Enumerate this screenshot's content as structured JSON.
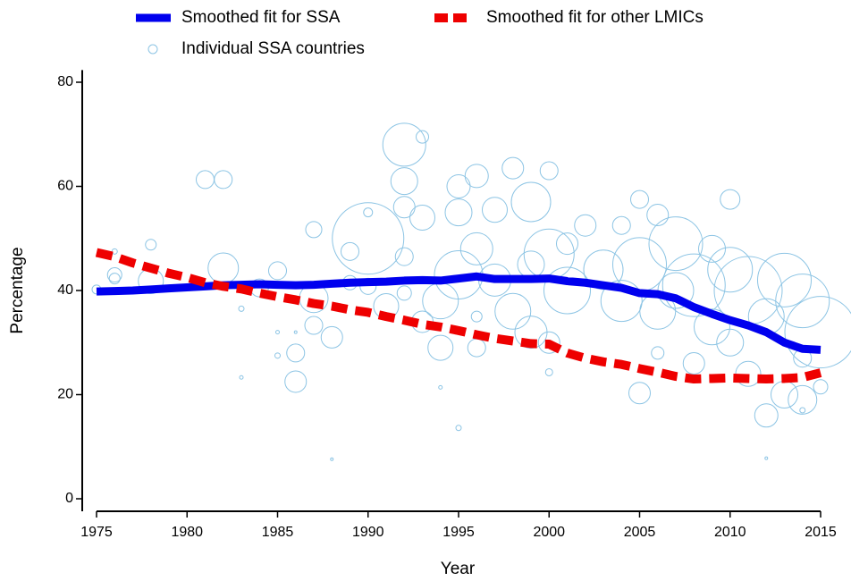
{
  "chart_data": {
    "type": "bubble",
    "xlabel": "Year",
    "ylabel": "Percentage",
    "xlim": [
      1975,
      2015
    ],
    "xticks": [
      1975,
      1980,
      1985,
      1990,
      1995,
      2000,
      2005,
      2010,
      2015
    ],
    "ylim": [
      -2,
      82
    ],
    "yticks": [
      0,
      20,
      40,
      60,
      80
    ],
    "legend": "top",
    "series": [
      {
        "name": "Smoothed fit for SSA",
        "color": "#0000ee",
        "style": "solid",
        "x": [
          1975,
          1976,
          1977,
          1978,
          1979,
          1980,
          1981,
          1982,
          1983,
          1984,
          1985,
          1986,
          1987,
          1988,
          1989,
          1990,
          1991,
          1992,
          1993,
          1994,
          1995,
          1996,
          1997,
          1998,
          1999,
          2000,
          2001,
          2002,
          2003,
          2004,
          2005,
          2006,
          2007,
          2008,
          2009,
          2010,
          2011,
          2012,
          2013,
          2014,
          2015
        ],
        "values": [
          39.8,
          39.9,
          40.0,
          40.2,
          40.4,
          40.6,
          40.8,
          41.0,
          41.1,
          41.2,
          41.1,
          41.0,
          41.1,
          41.3,
          41.5,
          41.6,
          41.7,
          41.9,
          42.0,
          41.9,
          42.3,
          42.7,
          42.2,
          42.2,
          42.2,
          42.3,
          41.8,
          41.5,
          41.0,
          40.5,
          39.5,
          39.3,
          38.5,
          36.8,
          35.5,
          34.3,
          33.3,
          32.0,
          30.0,
          28.8,
          28.6
        ]
      },
      {
        "name": "Smoothed fit for other LMICs",
        "color": "#ee0000",
        "style": "dashed",
        "x": [
          1975,
          1976,
          1977,
          1978,
          1979,
          1980,
          1981,
          1982,
          1983,
          1984,
          1985,
          1986,
          1987,
          1988,
          1989,
          1990,
          1991,
          1992,
          1993,
          1994,
          1995,
          1996,
          1997,
          1998,
          1999,
          2000,
          2001,
          2002,
          2003,
          2004,
          2005,
          2006,
          2007,
          2008,
          2009,
          2010,
          2011,
          2012,
          2013,
          2014,
          2015
        ],
        "values": [
          47.3,
          46.5,
          45.3,
          44.3,
          43.3,
          42.5,
          41.5,
          40.8,
          40.3,
          39.5,
          38.8,
          38.2,
          37.5,
          37.0,
          36.3,
          35.8,
          35.0,
          34.3,
          33.5,
          33.0,
          32.3,
          31.5,
          30.8,
          30.3,
          29.8,
          29.7,
          28.0,
          27.0,
          26.3,
          25.8,
          25.0,
          24.3,
          23.5,
          23.0,
          23.1,
          23.2,
          23.1,
          23.0,
          23.1,
          23.3,
          24.2
        ]
      },
      {
        "name": "Individual SSA countries",
        "color": "#8cc4e4",
        "style": "bubble",
        "x": [
          1975,
          1976,
          1976,
          1976,
          1978,
          1978,
          1981,
          1982,
          1982,
          1983,
          1983,
          1984,
          1985,
          1985,
          1985,
          1986,
          1986,
          1986,
          1987,
          1987,
          1987,
          1988,
          1988,
          1989,
          1989,
          1990,
          1990,
          1990,
          1991,
          1992,
          1992,
          1992,
          1992,
          1992,
          1993,
          1993,
          1993,
          1994,
          1994,
          1994,
          1995,
          1995,
          1995,
          1995,
          1996,
          1996,
          1996,
          1996,
          1997,
          1997,
          1998,
          1998,
          1999,
          1999,
          1999,
          2000,
          2000,
          2000,
          2000,
          2001,
          2001,
          2002,
          2003,
          2004,
          2004,
          2005,
          2005,
          2005,
          2006,
          2006,
          2006,
          2007,
          2007,
          2008,
          2008,
          2009,
          2009,
          2010,
          2010,
          2010,
          2011,
          2011,
          2012,
          2012,
          2012,
          2013,
          2013,
          2014,
          2014,
          2014,
          2014,
          2015,
          2015
        ],
        "values": [
          40.2,
          47.5,
          43,
          42.3,
          48.8,
          41.8,
          61.3,
          61.3,
          44.3,
          36.5,
          23.3,
          40.5,
          43.8,
          32,
          27.5,
          28,
          22.5,
          32,
          51.7,
          38.5,
          33.3,
          31,
          7.6,
          47.5,
          41.5,
          50,
          55,
          40.8,
          37,
          68,
          61,
          56,
          46.5,
          39.5,
          69.5,
          54,
          34,
          21.4,
          29,
          38,
          60,
          55,
          13.6,
          43,
          62,
          48,
          35,
          29,
          55.5,
          42,
          63.5,
          36,
          57,
          45,
          32,
          63,
          47,
          30,
          24.3,
          49,
          40,
          52.5,
          44,
          52.5,
          38,
          57.5,
          20.3,
          45,
          54.5,
          36,
          28,
          49,
          40,
          41,
          26,
          48,
          33,
          57.5,
          44,
          30,
          40,
          24,
          16,
          7.8,
          35,
          42,
          20,
          38,
          27,
          17,
          19,
          21.5,
          32
        ],
        "sizes": [
          5,
          3,
          8,
          6,
          6,
          14,
          10,
          10,
          17,
          3,
          2,
          10,
          10,
          2,
          3,
          10,
          12,
          1.5,
          9,
          16,
          10,
          12,
          1.5,
          10,
          8,
          40,
          5,
          9,
          14,
          24,
          15,
          12,
          10,
          8,
          7,
          14,
          12,
          2,
          14,
          20,
          13,
          15,
          3,
          27,
          13,
          18,
          6,
          10,
          14,
          18,
          12,
          20,
          22,
          15,
          18,
          10,
          28,
          12,
          4,
          12,
          26,
          12,
          22,
          10,
          23,
          10,
          12,
          30,
          12,
          20,
          7,
          30,
          20,
          35,
          12,
          15,
          20,
          11,
          25,
          15,
          38,
          14,
          13,
          1.5,
          20,
          30,
          15,
          30,
          10,
          3,
          16,
          8,
          40
        ]
      }
    ]
  }
}
